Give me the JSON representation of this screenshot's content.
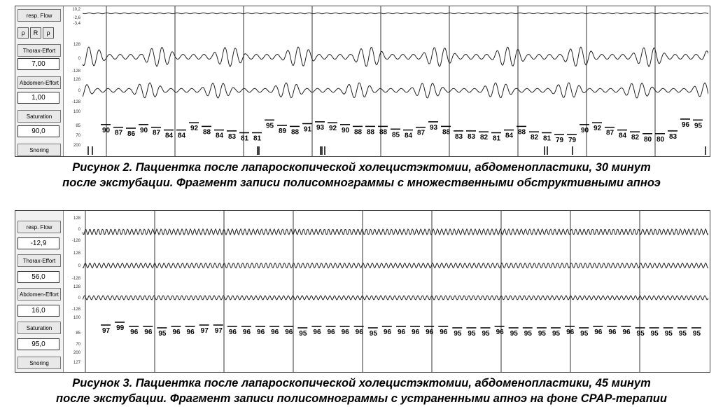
{
  "figure1": {
    "labels": [
      "resp. Flow",
      "Thorax-Effort",
      "Abdomen-Effort",
      "Saturation",
      "Snoring"
    ],
    "values": [
      "",
      "7,00",
      "1,00",
      "90,0",
      ""
    ],
    "scale_ticks": [
      "10,2",
      "-2,6",
      "-3,4",
      "128",
      "0",
      "-128",
      "128",
      "0",
      "-128",
      "100",
      "85",
      "70",
      "200"
    ],
    "toolbar": [
      "ρ",
      "R",
      "ρ"
    ],
    "saturation_values": [
      "90",
      "87",
      "86",
      "90",
      "87",
      "84",
      "84",
      "92",
      "88",
      "84",
      "83",
      "81",
      "81",
      "95",
      "89",
      "88",
      "91",
      "93",
      "92",
      "90",
      "88",
      "88",
      "88",
      "85",
      "84",
      "87",
      "93",
      "88",
      "83",
      "83",
      "82",
      "81",
      "84",
      "88",
      "82",
      "81",
      "79",
      "79",
      "90",
      "92",
      "87",
      "84",
      "82",
      "80",
      "80",
      "83",
      "96",
      "95"
    ],
    "caption_line1": "Рисунок 2. Пациентка после лапароскопической холецистэктомии, абдоменопластики, 30 минут",
    "caption_line2": "после экстубации. Фрагмент записи полисомнограммы с множественными обструктивными апноэ"
  },
  "figure2": {
    "labels": [
      "resp. Flow",
      "Thorax-Effort",
      "Abdomen-Effort",
      "Saturation",
      "Snoring"
    ],
    "values": [
      "-12,9",
      "56,0",
      "16,0",
      "95,0",
      ""
    ],
    "scale_ticks": [
      "128",
      "0",
      "-128",
      "128",
      "0",
      "-128",
      "128",
      "0",
      "-128",
      "100",
      "85",
      "70",
      "200",
      "127"
    ],
    "saturation_values": [
      "97",
      "99",
      "96",
      "96",
      "95",
      "96",
      "96",
      "97",
      "97",
      "96",
      "96",
      "96",
      "96",
      "96",
      "95",
      "96",
      "96",
      "96",
      "96",
      "95",
      "96",
      "96",
      "96",
      "96",
      "96",
      "95",
      "95",
      "95",
      "96",
      "95",
      "95",
      "95",
      "95",
      "96",
      "95",
      "96",
      "96",
      "96",
      "95",
      "95",
      "95",
      "95",
      "95"
    ],
    "caption_line1": "Рисунок 3. Пациентка после лапароскопической холецистэктомии, абдоменопластики, 45 минут",
    "caption_line2": "после экстубации. Фрагмент записи полисомнограммы с устраненными апноэ на фоне CPAP-терапии"
  }
}
